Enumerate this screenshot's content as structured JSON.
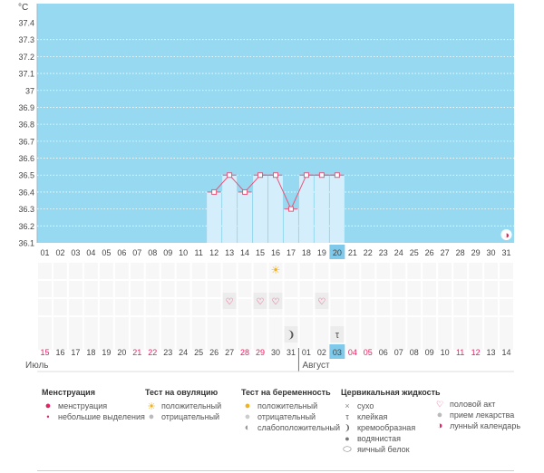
{
  "chart_data": {
    "type": "line",
    "title": "",
    "ylabel": "°C",
    "ylim": [
      36.1,
      37.4
    ],
    "yticks": [
      "37.4",
      "37.3",
      "37.2",
      "37.1",
      "37",
      "36.9",
      "36.8",
      "36.7",
      "36.6",
      "36.5",
      "36.4",
      "36.3",
      "36.2",
      "36.1"
    ],
    "cycle_days": [
      "01",
      "02",
      "03",
      "04",
      "05",
      "06",
      "07",
      "08",
      "09",
      "10",
      "11",
      "12",
      "13",
      "14",
      "15",
      "16",
      "17",
      "18",
      "19",
      "20",
      "21",
      "22",
      "23",
      "24",
      "25",
      "26",
      "27",
      "28",
      "29",
      "30",
      "31"
    ],
    "highlight_cycle_day": "20",
    "temperatures": [
      {
        "day": "12",
        "value": 36.4
      },
      {
        "day": "13",
        "value": 36.5
      },
      {
        "day": "14",
        "value": 36.4
      },
      {
        "day": "15",
        "value": 36.5
      },
      {
        "day": "16",
        "value": 36.5
      },
      {
        "day": "17",
        "value": 36.3
      },
      {
        "day": "18",
        "value": 36.5
      },
      {
        "day": "19",
        "value": 36.5
      },
      {
        "day": "20",
        "value": 36.5
      }
    ],
    "ovulation_test_positive_day": "16",
    "intercourse_days": [
      "13",
      "15",
      "16",
      "19"
    ],
    "cervical_fluid": [
      {
        "day": "17",
        "type": "creamy"
      },
      {
        "day": "20",
        "type": "sticky"
      }
    ],
    "moon_day": "31",
    "calendar_dates": [
      {
        "d": "15",
        "red": true
      },
      {
        "d": "16",
        "red": false
      },
      {
        "d": "17",
        "red": false
      },
      {
        "d": "18",
        "red": false
      },
      {
        "d": "19",
        "red": false
      },
      {
        "d": "20",
        "red": false
      },
      {
        "d": "21",
        "red": true
      },
      {
        "d": "22",
        "red": true
      },
      {
        "d": "23",
        "red": false
      },
      {
        "d": "24",
        "red": false
      },
      {
        "d": "25",
        "red": false
      },
      {
        "d": "26",
        "red": false
      },
      {
        "d": "27",
        "red": false
      },
      {
        "d": "28",
        "red": true
      },
      {
        "d": "29",
        "red": true
      },
      {
        "d": "30",
        "red": false
      },
      {
        "d": "31",
        "red": false
      },
      {
        "d": "01",
        "red": false
      },
      {
        "d": "02",
        "red": false
      },
      {
        "d": "03",
        "red": false
      },
      {
        "d": "04",
        "red": true
      },
      {
        "d": "05",
        "red": true
      },
      {
        "d": "06",
        "red": false
      },
      {
        "d": "07",
        "red": false
      },
      {
        "d": "08",
        "red": false
      },
      {
        "d": "09",
        "red": false
      },
      {
        "d": "10",
        "red": false
      },
      {
        "d": "11",
        "red": true
      },
      {
        "d": "12",
        "red": true
      },
      {
        "d": "13",
        "red": false
      },
      {
        "d": "14",
        "red": false
      }
    ],
    "today_index": 19,
    "month_labels": [
      "Июль",
      "Август"
    ]
  },
  "legend": {
    "menstruation": {
      "title": "Менструация",
      "items": [
        "менструация",
        "небольшие выделения"
      ]
    },
    "ovulation": {
      "title": "Тест на овуляцию",
      "items": [
        "положительный",
        "отрицательный"
      ]
    },
    "pregnancy": {
      "title": "Тест на беременность",
      "items": [
        "положительный",
        "отрицательный",
        "слабоположительный"
      ]
    },
    "cervical": {
      "title": "Цервикальная жидкость",
      "items": [
        "сухо",
        "клейкая",
        "кремообразная",
        "водянистая",
        "яичный белок"
      ]
    },
    "other": {
      "items": [
        "половой акт",
        "прием лекарства",
        "лунный календарь"
      ]
    }
  },
  "colors": {
    "plot_bg": "#97d9f0",
    "bar": "#d4eefb",
    "line": "#e8557a",
    "red_text": "#e0245e",
    "today": "#7fcaeb"
  }
}
